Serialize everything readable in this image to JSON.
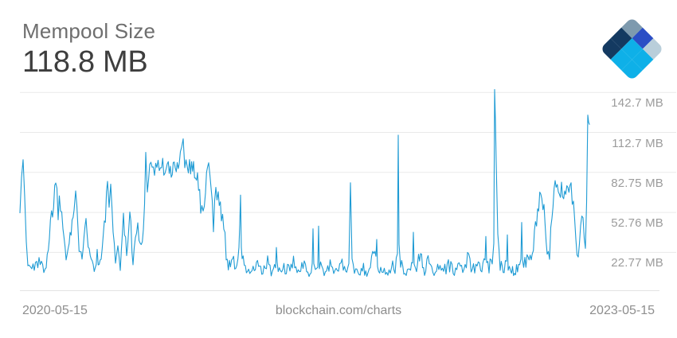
{
  "header": {
    "title": "Mempool Size",
    "current_value": "118.8 MB"
  },
  "footer": {
    "start_date": "2020-05-15",
    "watermark": "blockchain.com/charts",
    "end_date": "2023-05-15"
  },
  "logo": {
    "name": "blockchain.com diamond logo",
    "tiles": [
      "#7E9AAE",
      "#2B4EC5",
      "#B9CEDA",
      "#143A61",
      "#0EB0E8",
      "#0EB0E8",
      "#143A61",
      "#0EB0E8",
      "#0EB0E8"
    ]
  },
  "colors": {
    "line": "#1F9BD4",
    "grid": "#EAEAEA",
    "axis": "#E2E2E2",
    "title": "#6E6E6E",
    "value": "#3E3E3E",
    "tick_label": "#9C9C9C",
    "footer_text": "#8E8E8E"
  },
  "chart_data": {
    "type": "line",
    "title": "Mempool Size",
    "current_value_mb": 118.8,
    "unit": "MB",
    "x_range": [
      "2020-05-15",
      "2023-05-15"
    ],
    "ylim": [
      0,
      150
    ],
    "grid": true,
    "legend_position": "none",
    "y_ticks": [
      {
        "value": 142.7,
        "label": "142.7 MB"
      },
      {
        "value": 112.7,
        "label": "112.7 MB"
      },
      {
        "value": 82.75,
        "label": "82.75 MB"
      },
      {
        "value": 52.76,
        "label": "52.76 MB"
      },
      {
        "value": 22.77,
        "label": "22.77 MB"
      }
    ],
    "series": [
      {
        "name": "Mempool Size (MB)",
        "keypoint_format": [
          "x_offset_px_0_to_715",
          "value_mb",
          "noise_amplitude_mb"
        ],
        "keypoints": [
          [
            0,
            55,
            4
          ],
          [
            2,
            82,
            5
          ],
          [
            4,
            91,
            2
          ],
          [
            6,
            62,
            8
          ],
          [
            8,
            32,
            8
          ],
          [
            10,
            14,
            5
          ],
          [
            15,
            10,
            6
          ],
          [
            21,
            18,
            9
          ],
          [
            27,
            11,
            6
          ],
          [
            33,
            16,
            8
          ],
          [
            37,
            35,
            11
          ],
          [
            41,
            56,
            11
          ],
          [
            45,
            78,
            5
          ],
          [
            48,
            55,
            13
          ],
          [
            51,
            62,
            9
          ],
          [
            54,
            42,
            11
          ],
          [
            58,
            26,
            9
          ],
          [
            63,
            36,
            13
          ],
          [
            68,
            55,
            10
          ],
          [
            70,
            66,
            4
          ],
          [
            73,
            36,
            11
          ],
          [
            78,
            26,
            11
          ],
          [
            83,
            52,
            7
          ],
          [
            87,
            22,
            8
          ],
          [
            92,
            13,
            6
          ],
          [
            97,
            19,
            9
          ],
          [
            102,
            16,
            8
          ],
          [
            106,
            40,
            9
          ],
          [
            110,
            74,
            7
          ],
          [
            112,
            60,
            9
          ],
          [
            114,
            75,
            5
          ],
          [
            117,
            32,
            9
          ],
          [
            120,
            13,
            6
          ],
          [
            123,
            28,
            8
          ],
          [
            126,
            16,
            7
          ],
          [
            130,
            45,
            9
          ],
          [
            134,
            26,
            9
          ],
          [
            138,
            48,
            8
          ],
          [
            142,
            22,
            9
          ],
          [
            145,
            31,
            9
          ],
          [
            148,
            42,
            8
          ],
          [
            151,
            26,
            9
          ],
          [
            155,
            36,
            11
          ],
          [
            158,
            95,
            6
          ],
          [
            160,
            76,
            9
          ],
          [
            163,
            90,
            7
          ],
          [
            166,
            85,
            8
          ],
          [
            175,
            88,
            8
          ],
          [
            185,
            86,
            8
          ],
          [
            190,
            81,
            7
          ],
          [
            195,
            88,
            7
          ],
          [
            200,
            92,
            7
          ],
          [
            203,
            100,
            5
          ],
          [
            205,
            108,
            3
          ],
          [
            207,
            92,
            7
          ],
          [
            213,
            88,
            7
          ],
          [
            218,
            86,
            7
          ],
          [
            223,
            80,
            9
          ],
          [
            227,
            56,
            9
          ],
          [
            230,
            49,
            7
          ],
          [
            233,
            74,
            9
          ],
          [
            237,
            88,
            5
          ],
          [
            240,
            71,
            9
          ],
          [
            243,
            46,
            9
          ],
          [
            246,
            64,
            9
          ],
          [
            249,
            71,
            7
          ],
          [
            253,
            56,
            11
          ],
          [
            256,
            41,
            9
          ],
          [
            259,
            19,
            7
          ],
          [
            263,
            13,
            5
          ],
          [
            267,
            20,
            7
          ],
          [
            271,
            13,
            5
          ],
          [
            275,
            24,
            8
          ],
          [
            276,
            40,
            4
          ],
          [
            277,
            66,
            2
          ],
          [
            278,
            30,
            6
          ],
          [
            279,
            20,
            6
          ],
          [
            283,
            10,
            4
          ],
          [
            290,
            8,
            3
          ],
          [
            297,
            12,
            6
          ],
          [
            305,
            8,
            4
          ],
          [
            311,
            14,
            7
          ],
          [
            317,
            8,
            4
          ],
          [
            321,
            12,
            4
          ],
          [
            322,
            27,
            2
          ],
          [
            323,
            12,
            4
          ],
          [
            327,
            8,
            4
          ],
          [
            333,
            12,
            6
          ],
          [
            339,
            8,
            4
          ],
          [
            345,
            16,
            7
          ],
          [
            351,
            8,
            4
          ],
          [
            357,
            13,
            6
          ],
          [
            363,
            8,
            4
          ],
          [
            367,
            14,
            5
          ],
          [
            368,
            40,
            2
          ],
          [
            369,
            15,
            5
          ],
          [
            371,
            12,
            5
          ],
          [
            374,
            14,
            5
          ],
          [
            375,
            42,
            2
          ],
          [
            376,
            14,
            5
          ],
          [
            379,
            11,
            5
          ],
          [
            385,
            8,
            4
          ],
          [
            391,
            13,
            6
          ],
          [
            397,
            8,
            4
          ],
          [
            403,
            15,
            7
          ],
          [
            409,
            10,
            4
          ],
          [
            413,
            12,
            4
          ],
          [
            415,
            76,
            2
          ],
          [
            417,
            13,
            5
          ],
          [
            423,
            8,
            4
          ],
          [
            430,
            12,
            6
          ],
          [
            437,
            8,
            4
          ],
          [
            443,
            18,
            7
          ],
          [
            447,
            20,
            5
          ],
          [
            448,
            33,
            2
          ],
          [
            449,
            12,
            4
          ],
          [
            453,
            9,
            4
          ],
          [
            459,
            8,
            4
          ],
          [
            465,
            13,
            6
          ],
          [
            471,
            10,
            4
          ],
          [
            474,
            20,
            4
          ],
          [
            475,
            110,
            2
          ],
          [
            476,
            30,
            6
          ],
          [
            478,
            14,
            5
          ],
          [
            482,
            10,
            4
          ],
          [
            488,
            8,
            4
          ],
          [
            493,
            15,
            4
          ],
          [
            494,
            38,
            2
          ],
          [
            495,
            14,
            4
          ],
          [
            498,
            11,
            4
          ],
          [
            503,
            24,
            7
          ],
          [
            508,
            9,
            4
          ],
          [
            514,
            17,
            7
          ],
          [
            520,
            8,
            4
          ],
          [
            526,
            13,
            6
          ],
          [
            532,
            9,
            4
          ],
          [
            538,
            15,
            7
          ],
          [
            544,
            8,
            4
          ],
          [
            550,
            13,
            6
          ],
          [
            556,
            9,
            4
          ],
          [
            562,
            20,
            7
          ],
          [
            568,
            9,
            4
          ],
          [
            574,
            14,
            6
          ],
          [
            580,
            10,
            4
          ],
          [
            584,
            18,
            5
          ],
          [
            585,
            32,
            3
          ],
          [
            586,
            14,
            4
          ],
          [
            589,
            11,
            4
          ],
          [
            593,
            19,
            5
          ],
          [
            595,
            30,
            4
          ],
          [
            596,
            144,
            1
          ],
          [
            597,
            120,
            3
          ],
          [
            598,
            87,
            4
          ],
          [
            600,
            32,
            7
          ],
          [
            603,
            13,
            5
          ],
          [
            608,
            10,
            4
          ],
          [
            611,
            20,
            4
          ],
          [
            612,
            37,
            2
          ],
          [
            613,
            13,
            4
          ],
          [
            616,
            10,
            4
          ],
          [
            621,
            9,
            4
          ],
          [
            626,
            13,
            5
          ],
          [
            629,
            20,
            4
          ],
          [
            630,
            44,
            2
          ],
          [
            631,
            16,
            5
          ],
          [
            634,
            15,
            6
          ],
          [
            638,
            21,
            6
          ],
          [
            642,
            13,
            5
          ],
          [
            646,
            33,
            7
          ],
          [
            650,
            54,
            7
          ],
          [
            654,
            67,
            5
          ],
          [
            658,
            56,
            7
          ],
          [
            662,
            26,
            5
          ],
          [
            665,
            20,
            4
          ],
          [
            668,
            52,
            9
          ],
          [
            672,
            74,
            5
          ],
          [
            676,
            64,
            7
          ],
          [
            680,
            71,
            6
          ],
          [
            684,
            67,
            7
          ],
          [
            688,
            74,
            5
          ],
          [
            692,
            69,
            7
          ],
          [
            695,
            60,
            7
          ],
          [
            698,
            31,
            5
          ],
          [
            701,
            18,
            4
          ],
          [
            704,
            44,
            7
          ],
          [
            707,
            51,
            5
          ],
          [
            710,
            23,
            5
          ],
          [
            711.5,
            58,
            3
          ],
          [
            713,
            124,
            2
          ],
          [
            714,
            120,
            1
          ],
          [
            715,
            118.8,
            0
          ]
        ]
      }
    ]
  }
}
